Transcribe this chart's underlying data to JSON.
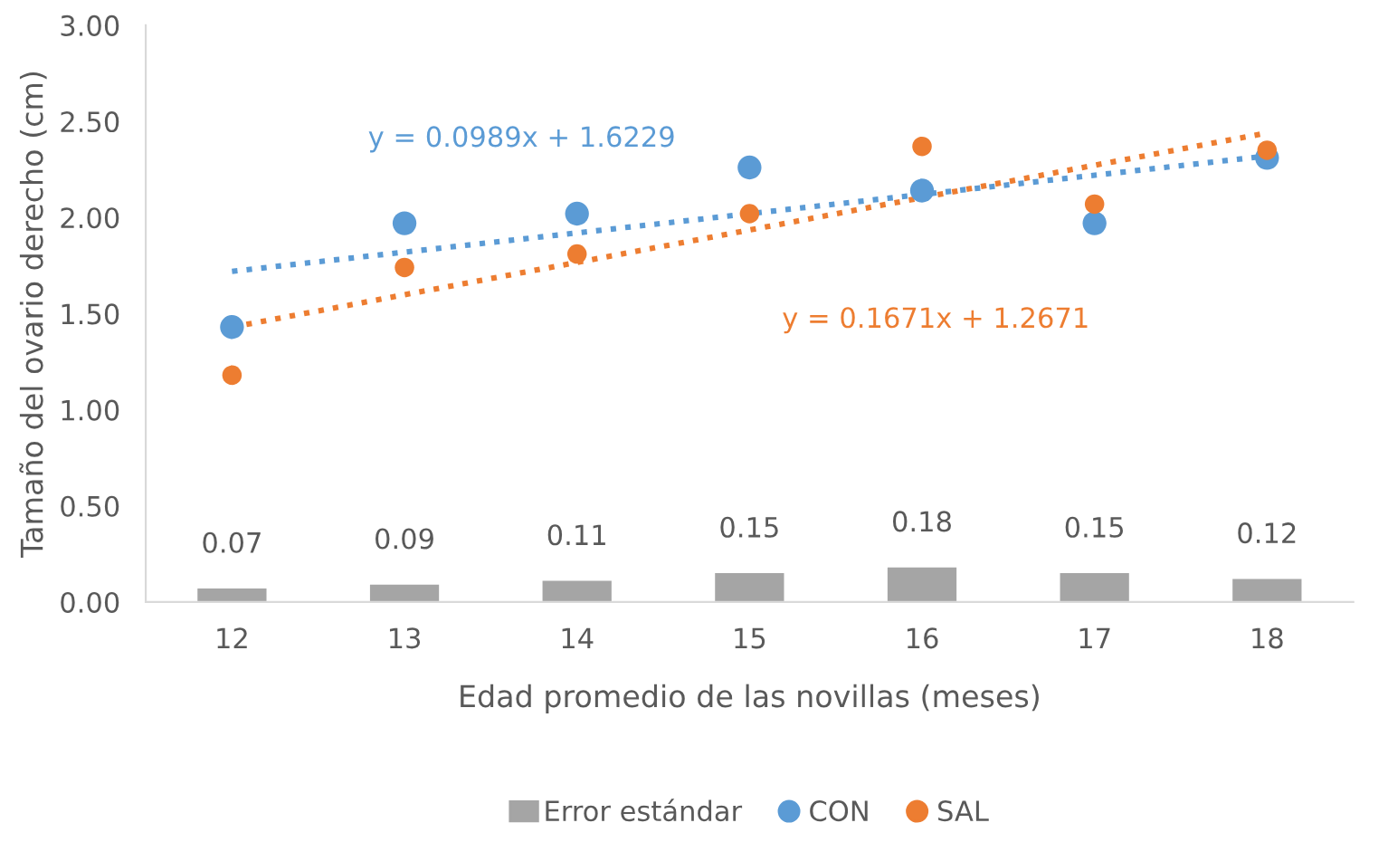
{
  "chart_data": {
    "type": "bar",
    "xlabel": "Edad promedio de las novillas (meses)",
    "ylabel": "Tamaño del ovario derecho (cm)",
    "categories": [
      "12",
      "13",
      "14",
      "15",
      "16",
      "17",
      "18"
    ],
    "ylim": [
      0,
      3
    ],
    "yticks": [
      {
        "value": 0,
        "label": "0.00"
      },
      {
        "value": 0.5,
        "label": "0.50"
      },
      {
        "value": 1,
        "label": "1.00"
      },
      {
        "value": 1.5,
        "label": "1.50"
      },
      {
        "value": 2,
        "label": "2.00"
      },
      {
        "value": 2.5,
        "label": "2.50"
      },
      {
        "value": 3,
        "label": "3.00"
      }
    ],
    "grid": false,
    "legend": "bottom",
    "series": [
      {
        "name": "Error estándar",
        "color": "#a5a5a5",
        "values": [
          0.07,
          0.09,
          0.11,
          0.15,
          0.18,
          0.15,
          0.12
        ],
        "data_labels": true
      },
      {
        "name": "CON",
        "type": "scatter",
        "color": "#5b9bd5",
        "marker": "circle",
        "values": [
          1.43,
          1.97,
          2.02,
          2.26,
          2.14,
          1.97,
          2.31
        ]
      },
      {
        "name": "SAL",
        "type": "scatter",
        "color": "#ed7d31",
        "marker": "circle",
        "values": [
          1.18,
          1.74,
          1.81,
          2.02,
          2.37,
          2.07,
          2.35
        ]
      },
      {
        "type": "line",
        "color": "#5b9bd5",
        "line_style": "dotted",
        "x": [
          "12",
          "18"
        ],
        "values": [
          1.72,
          2.32
        ]
      },
      {
        "type": "line",
        "color": "#ed7d31",
        "line_style": "dotted",
        "x": [
          "12",
          "18"
        ],
        "values": [
          1.43,
          2.44
        ]
      }
    ],
    "annotations": [
      "y = 0.0989x + 1.6229",
      "y = 0.1671x + 1.2671"
    ]
  }
}
